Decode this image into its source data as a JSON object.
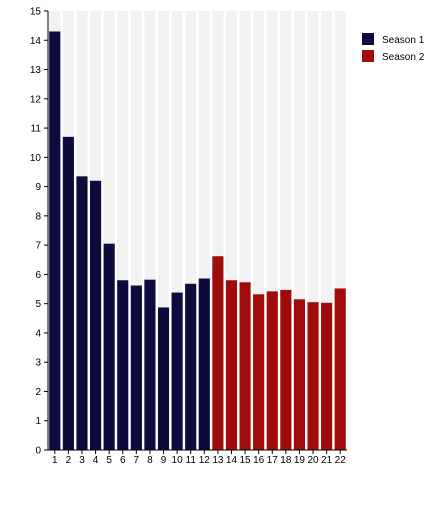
{
  "chart_data": {
    "type": "bar",
    "categories": [
      "1",
      "2",
      "3",
      "4",
      "5",
      "6",
      "7",
      "8",
      "9",
      "10",
      "11",
      "12",
      "13",
      "14",
      "15",
      "16",
      "17",
      "18",
      "19",
      "20",
      "21",
      "22"
    ],
    "series": [
      {
        "name": "Season 1",
        "color": "#0d0a3d",
        "x": [
          "1",
          "2",
          "3",
          "4",
          "5",
          "6",
          "7",
          "8",
          "9",
          "10",
          "11",
          "12"
        ],
        "values": [
          14.3,
          10.7,
          9.35,
          9.2,
          7.05,
          5.8,
          5.62,
          5.82,
          4.87,
          5.38,
          5.68,
          5.86
        ]
      },
      {
        "name": "Season 2",
        "color": "#a00b0b",
        "x": [
          "13",
          "14",
          "15",
          "16",
          "17",
          "18",
          "19",
          "20",
          "21",
          "22"
        ],
        "values": [
          6.62,
          5.8,
          5.73,
          5.32,
          5.42,
          5.47,
          5.15,
          5.05,
          5.03,
          5.52
        ]
      }
    ],
    "y_ticks": [
      "0",
      "1",
      "2",
      "3",
      "4",
      "5",
      "6",
      "7",
      "8",
      "9",
      "10",
      "11",
      "12",
      "13",
      "14",
      "15"
    ],
    "ylim": [
      0,
      15
    ],
    "background_band_color": "#f2f2f2",
    "legend_position": "top-right"
  }
}
